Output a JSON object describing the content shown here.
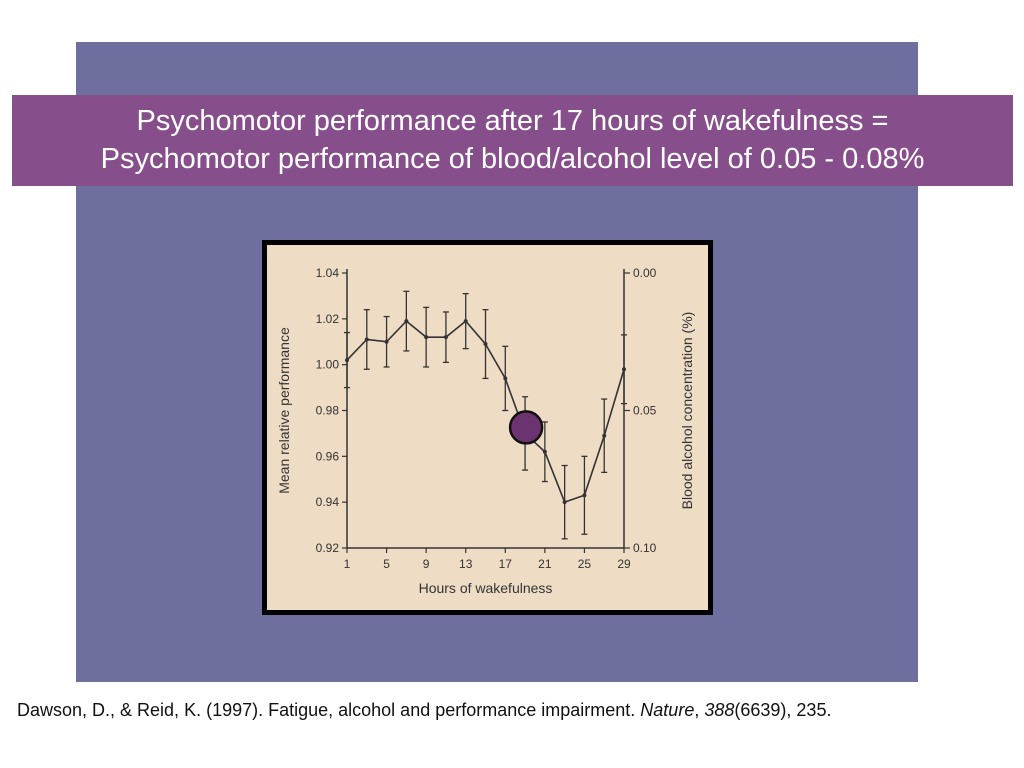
{
  "slide": {
    "title_line1": "Psychomotor performance after 17 hours of wakefulness =",
    "title_line2": "Psychomotor performance of blood/alcohol level of 0.05 - 0.08%",
    "citation_part1": "Dawson, D., & Reid, K. (1997). Fatigue, alcohol and performance impairment. ",
    "citation_journal": "Nature",
    "citation_sep": ", ",
    "citation_volume": "388",
    "citation_rest": "(6639), 235."
  },
  "colors": {
    "panel": "#6e6f9f",
    "title_bg": "#874e8c",
    "figure_bg": "#efdcc5",
    "marker": "#6b3470"
  },
  "chart_data": {
    "type": "line",
    "xlabel": "Hours of wakefulness",
    "ylabel": "Mean relative performance",
    "y2label": "Blood alcohol concentration (%)",
    "xlim": [
      1,
      29
    ],
    "ylim": [
      0.92,
      1.04
    ],
    "x_ticks": [
      "1",
      "5",
      "9",
      "13",
      "17",
      "21",
      "25",
      "29"
    ],
    "x_tick_values": [
      1,
      5,
      9,
      13,
      17,
      21,
      25,
      29
    ],
    "y_ticks": [
      "1.04",
      "1.02",
      "1.00",
      "0.98",
      "0.96",
      "0.94",
      "0.92"
    ],
    "y_tick_values": [
      1.04,
      1.02,
      1.0,
      0.98,
      0.96,
      0.94,
      0.92
    ],
    "y2_ticks": [
      "0.00",
      "0.05",
      "0.10"
    ],
    "y2_tick_values": [
      0.0,
      0.05,
      0.1
    ],
    "y2_range": [
      0.0,
      0.1
    ],
    "series": [
      {
        "x": [
          1,
          3,
          5,
          7,
          9,
          11,
          13,
          15,
          17,
          19,
          21,
          23,
          25,
          27,
          29
        ],
        "values": [
          1.002,
          1.011,
          1.01,
          1.019,
          1.012,
          1.012,
          1.019,
          1.009,
          0.994,
          0.97,
          0.962,
          0.94,
          0.943,
          0.969,
          0.998
        ],
        "err": [
          0.012,
          0.013,
          0.011,
          0.013,
          0.013,
          0.011,
          0.012,
          0.015,
          0.014,
          0.016,
          0.013,
          0.016,
          0.017,
          0.016,
          0.015
        ]
      }
    ],
    "highlight": {
      "x": 19,
      "y": 0.97
    }
  }
}
